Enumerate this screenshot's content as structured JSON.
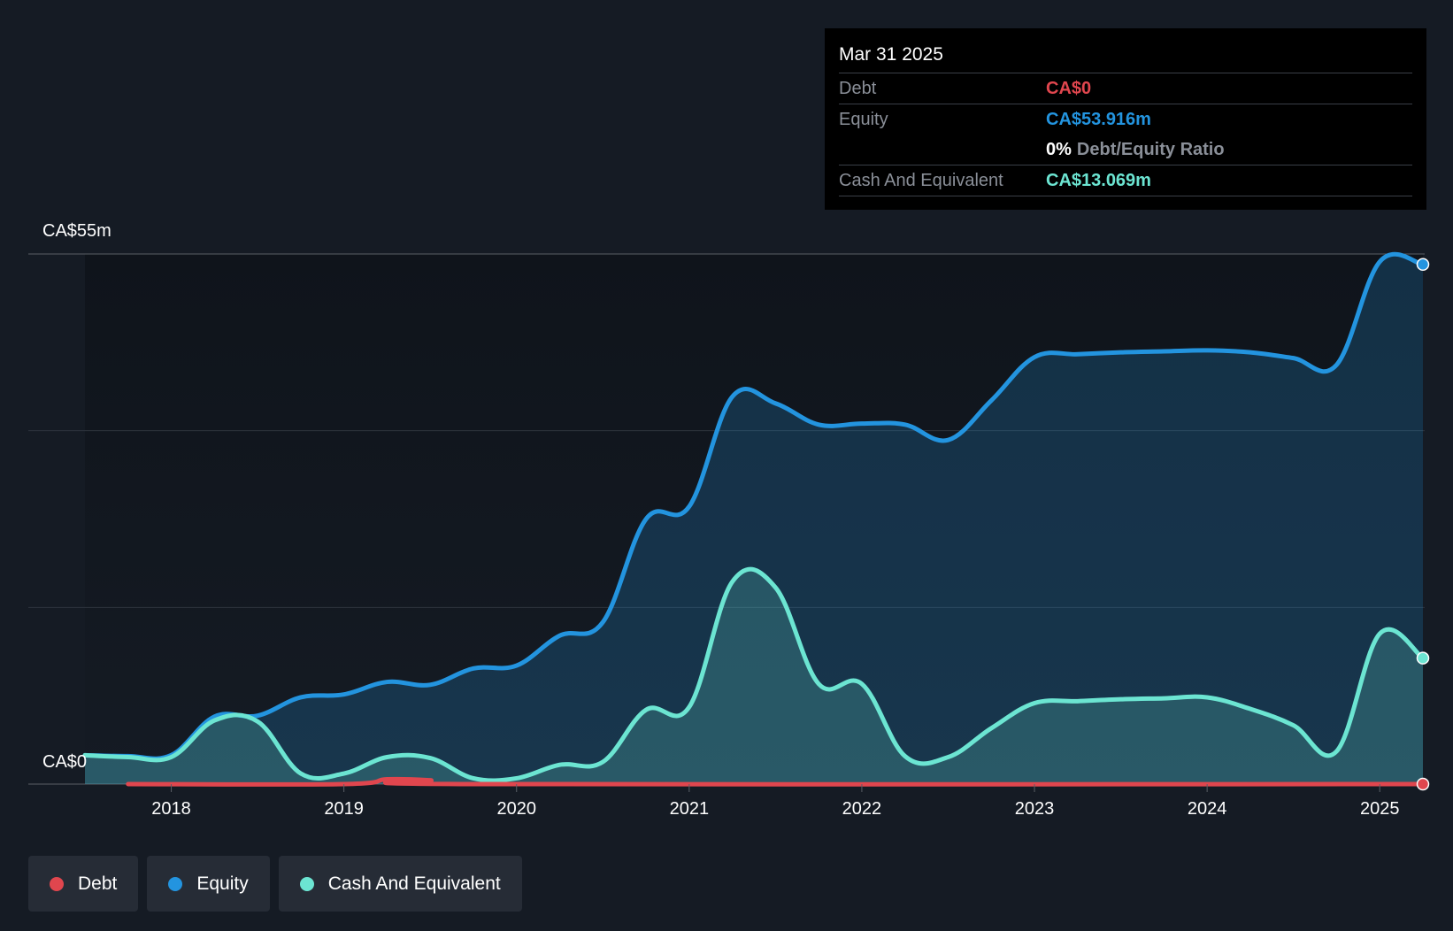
{
  "tooltip": {
    "date": "Mar 31 2025",
    "debt_label": "Debt",
    "debt_value": "CA$0",
    "equity_label": "Equity",
    "equity_value": "CA$53.916m",
    "ratio_pct": "0%",
    "ratio_label": "Debt/Equity Ratio",
    "cash_label": "Cash And Equivalent",
    "cash_value": "CA$13.069m"
  },
  "legend": {
    "debt": "Debt",
    "equity": "Equity",
    "cash": "Cash And Equivalent"
  },
  "colors": {
    "debt": "#e0464e",
    "equity": "#2394df",
    "cash": "#6ce5d2",
    "background": "#151b24"
  },
  "chart_data": {
    "type": "area",
    "title": "",
    "xlabel": "",
    "ylabel": "",
    "ylim": [
      0,
      55
    ],
    "y_tick_labels": [
      "CA$0",
      "CA$55m"
    ],
    "x_ticks": [
      {
        "value": 2018,
        "label": "2018"
      },
      {
        "value": 2019,
        "label": "2019"
      },
      {
        "value": 2020,
        "label": "2020"
      },
      {
        "value": 2021,
        "label": "2021"
      },
      {
        "value": 2022,
        "label": "2022"
      },
      {
        "value": 2023,
        "label": "2023"
      },
      {
        "value": 2024,
        "label": "2024"
      },
      {
        "value": 2025,
        "label": "2025"
      }
    ],
    "xlim": [
      2017.33,
      2025.25
    ],
    "grid": true,
    "legend_position": "bottom-left",
    "series": [
      {
        "name": "Debt",
        "color": "#e0464e",
        "points": [
          [
            2017.75,
            0.0
          ],
          [
            2019.0,
            0.0
          ],
          [
            2019.25,
            0.5
          ],
          [
            2019.5,
            0.4
          ],
          [
            2019.75,
            0.0
          ],
          [
            2025.25,
            0.0
          ]
        ]
      },
      {
        "name": "Equity",
        "color": "#2394df",
        "points": [
          [
            2017.5,
            3.0
          ],
          [
            2017.75,
            2.9
          ],
          [
            2018.0,
            3.0
          ],
          [
            2018.25,
            7.0
          ],
          [
            2018.5,
            7.1
          ],
          [
            2018.75,
            9.0
          ],
          [
            2019.0,
            9.3
          ],
          [
            2019.25,
            10.6
          ],
          [
            2019.5,
            10.3
          ],
          [
            2019.75,
            12.0
          ],
          [
            2020.0,
            12.3
          ],
          [
            2020.25,
            15.4
          ],
          [
            2020.5,
            16.8
          ],
          [
            2020.75,
            27.5
          ],
          [
            2021.0,
            28.8
          ],
          [
            2021.25,
            40.2
          ],
          [
            2021.5,
            39.5
          ],
          [
            2021.75,
            37.3
          ],
          [
            2022.0,
            37.4
          ],
          [
            2022.25,
            37.3
          ],
          [
            2022.5,
            35.7
          ],
          [
            2022.75,
            39.8
          ],
          [
            2023.0,
            44.3
          ],
          [
            2023.25,
            44.6
          ],
          [
            2023.5,
            44.8
          ],
          [
            2023.75,
            44.9
          ],
          [
            2024.0,
            45.0
          ],
          [
            2024.25,
            44.8
          ],
          [
            2024.5,
            44.2
          ],
          [
            2024.75,
            43.5
          ],
          [
            2025.0,
            54.2
          ],
          [
            2025.25,
            53.916
          ]
        ]
      },
      {
        "name": "Cash And Equivalent",
        "color": "#6ce5d2",
        "points": [
          [
            2017.5,
            3.0
          ],
          [
            2017.75,
            2.8
          ],
          [
            2018.0,
            2.8
          ],
          [
            2018.25,
            6.6
          ],
          [
            2018.5,
            6.5
          ],
          [
            2018.75,
            1.1
          ],
          [
            2019.0,
            1.1
          ],
          [
            2019.25,
            2.8
          ],
          [
            2019.5,
            2.7
          ],
          [
            2019.75,
            0.6
          ],
          [
            2020.0,
            0.6
          ],
          [
            2020.25,
            2.0
          ],
          [
            2020.5,
            2.3
          ],
          [
            2020.75,
            7.7
          ],
          [
            2021.0,
            8.0
          ],
          [
            2021.25,
            21.0
          ],
          [
            2021.5,
            20.4
          ],
          [
            2021.75,
            10.4
          ],
          [
            2022.0,
            10.4
          ],
          [
            2022.25,
            2.9
          ],
          [
            2022.5,
            2.8
          ],
          [
            2022.75,
            5.8
          ],
          [
            2023.0,
            8.4
          ],
          [
            2023.25,
            8.6
          ],
          [
            2023.5,
            8.8
          ],
          [
            2023.75,
            8.9
          ],
          [
            2024.0,
            9.0
          ],
          [
            2024.25,
            7.8
          ],
          [
            2024.5,
            6.1
          ],
          [
            2024.75,
            3.4
          ],
          [
            2025.0,
            15.6
          ],
          [
            2025.25,
            13.069
          ]
        ]
      }
    ]
  }
}
